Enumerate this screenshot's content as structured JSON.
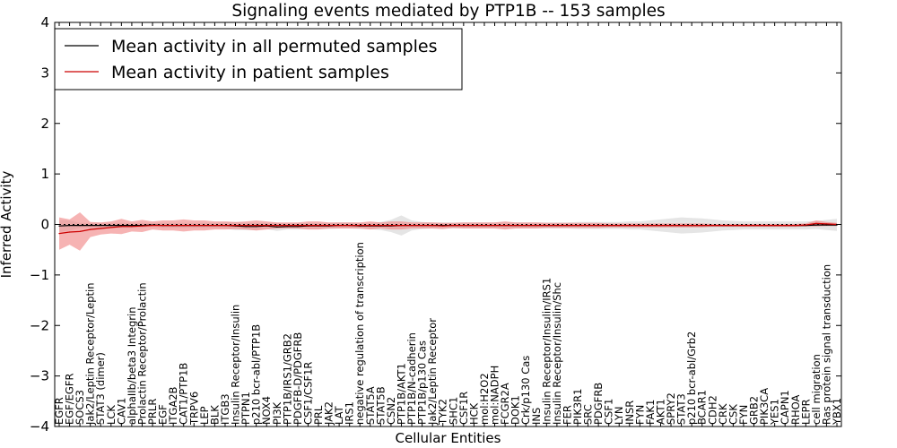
{
  "chart_data": {
    "type": "line",
    "title": "Signaling events mediated by PTP1B -- 153 samples",
    "xlabel": "Cellular Entities",
    "ylabel": "Inferred Activity",
    "ylim": [
      -4,
      4
    ],
    "yticks": [
      -4,
      -3,
      -2,
      -1,
      0,
      1,
      2,
      3,
      4
    ],
    "ytick_labels": [
      "−4",
      "−3",
      "−2",
      "−1",
      "0",
      "1",
      "2",
      "3",
      "4"
    ],
    "legend_position": "top-left",
    "categories": [
      "EGFR",
      "EGF/EGFR",
      "SOCS3",
      "Jak2/Leptin Receptor/Leptin",
      "STAT3 (dimer)",
      "LCK",
      "CAV1",
      "alphaIIb/beta3 Integrin",
      "Prolactin Receptor/Prolactin",
      "PRLR",
      "EGF",
      "ITGA2B",
      "CAT1/PTP1B",
      "TRPV6",
      "LEP",
      "BLK",
      "ITGB3",
      "Insulin Receptor/Insulin",
      "PTPN1",
      "p210 bcr-abl/PTP1B",
      "NOX4",
      "PI3K",
      "PTP1B/IRS1/GRB2",
      "PDGFB-D/PDGFRB",
      "CSF1/CSF1R",
      "PRL",
      "JAK2",
      "LAT",
      "IRS1",
      "negative regulation of transcription",
      "STAT5A",
      "STAT5B",
      "CSN2",
      "PTP1B/AKT1",
      "PTP1B/N-cadherin",
      "PTP1B/p130 Cas",
      "Jak2/Leptin Receptor",
      "TYK2",
      "SHC1",
      "CSF1R",
      "HCK",
      "mol:H2O2",
      "mol:NADPH",
      "FCGR2A",
      "DOK1",
      "Crk/p130 Cas",
      "INS",
      "Insulin Receptor/Insulin/IRS1",
      "Insulin Receptor/Insulin/Shc",
      "FER",
      "PIK3R1",
      "SRC",
      "PDGFRB",
      "CSF1",
      "LYN",
      "INSR",
      "FYN",
      "FAK1",
      "AKT1",
      "SPRY2",
      "STAT3",
      "p210 bcr-abl/Grb2",
      "BCAR1",
      "CDH2",
      "CRK",
      "CSK",
      "FYN",
      "GRB2",
      "PIK3CA",
      "YES1",
      "CAPN1",
      "RHOA",
      "LEPR",
      "cell migration",
      "Ras protein signal transduction",
      "YBX1"
    ],
    "series": [
      {
        "name": "Mean activity in all permuted samples",
        "color": "#000000",
        "values": [
          -0.03,
          -0.02,
          -0.02,
          -0.02,
          -0.02,
          -0.02,
          -0.02,
          -0.02,
          -0.02,
          -0.01,
          -0.02,
          -0.02,
          -0.02,
          -0.02,
          -0.02,
          -0.02,
          -0.02,
          -0.03,
          -0.04,
          -0.04,
          -0.03,
          -0.05,
          -0.04,
          -0.04,
          -0.03,
          -0.03,
          -0.03,
          -0.02,
          -0.02,
          -0.03,
          -0.03,
          -0.03,
          -0.03,
          -0.02,
          -0.02,
          -0.02,
          -0.02,
          -0.02,
          -0.02,
          -0.02,
          -0.02,
          -0.02,
          -0.02,
          -0.02,
          -0.02,
          -0.02,
          -0.02,
          -0.02,
          -0.02,
          -0.02,
          -0.02,
          -0.02,
          -0.02,
          -0.02,
          -0.02,
          -0.02,
          -0.02,
          -0.02,
          -0.02,
          -0.02,
          -0.02,
          -0.02,
          -0.02,
          -0.02,
          -0.02,
          -0.02,
          -0.02,
          -0.02,
          -0.02,
          -0.02,
          -0.02,
          -0.02,
          -0.02,
          -0.01,
          -0.01,
          -0.01
        ],
        "band": [
          0.12,
          0.1,
          0.05,
          0.05,
          0.05,
          0.05,
          0.05,
          0.05,
          0.05,
          0.04,
          0.05,
          0.05,
          0.05,
          0.05,
          0.05,
          0.05,
          0.06,
          0.08,
          0.07,
          0.07,
          0.06,
          0.08,
          0.06,
          0.06,
          0.06,
          0.06,
          0.06,
          0.06,
          0.06,
          0.06,
          0.06,
          0.08,
          0.12,
          0.2,
          0.1,
          0.07,
          0.06,
          0.06,
          0.06,
          0.06,
          0.06,
          0.06,
          0.06,
          0.06,
          0.06,
          0.06,
          0.06,
          0.06,
          0.06,
          0.06,
          0.07,
          0.07,
          0.07,
          0.07,
          0.07,
          0.08,
          0.08,
          0.1,
          0.12,
          0.14,
          0.16,
          0.15,
          0.14,
          0.12,
          0.1,
          0.09,
          0.08,
          0.08,
          0.08,
          0.08,
          0.08,
          0.08,
          0.08,
          0.08,
          0.1,
          0.12
        ]
      },
      {
        "name": "Mean activity in patient samples",
        "color": "#cc0000",
        "values": [
          -0.18,
          -0.15,
          -0.14,
          -0.1,
          -0.08,
          -0.06,
          -0.04,
          -0.04,
          -0.03,
          -0.02,
          -0.02,
          -0.02,
          -0.02,
          -0.02,
          -0.02,
          -0.02,
          -0.02,
          -0.02,
          -0.02,
          -0.02,
          -0.02,
          -0.02,
          -0.02,
          -0.02,
          -0.02,
          -0.02,
          -0.02,
          -0.02,
          -0.02,
          -0.02,
          -0.02,
          -0.02,
          -0.02,
          -0.02,
          -0.02,
          -0.02,
          -0.02,
          -0.03,
          -0.02,
          -0.02,
          -0.02,
          -0.02,
          -0.02,
          -0.02,
          -0.02,
          -0.02,
          -0.02,
          -0.02,
          -0.02,
          -0.02,
          -0.02,
          -0.02,
          -0.02,
          -0.02,
          -0.02,
          -0.02,
          -0.02,
          -0.02,
          -0.02,
          -0.02,
          -0.02,
          -0.02,
          -0.02,
          -0.02,
          -0.02,
          -0.02,
          -0.02,
          -0.02,
          -0.02,
          -0.02,
          -0.02,
          -0.02,
          -0.01,
          0.02,
          0.01,
          0.0
        ],
        "band": [
          0.32,
          0.25,
          0.38,
          0.15,
          0.12,
          0.12,
          0.15,
          0.1,
          0.12,
          0.08,
          0.1,
          0.1,
          0.12,
          0.1,
          0.1,
          0.08,
          0.08,
          0.07,
          0.08,
          0.1,
          0.08,
          0.06,
          0.06,
          0.06,
          0.08,
          0.08,
          0.06,
          0.06,
          0.06,
          0.06,
          0.08,
          0.06,
          0.08,
          0.08,
          0.06,
          0.06,
          0.06,
          0.06,
          0.05,
          0.06,
          0.06,
          0.06,
          0.06,
          0.08,
          0.06,
          0.06,
          0.06,
          0.05,
          0.05,
          0.05,
          0.05,
          0.05,
          0.05,
          0.04,
          0.04,
          0.04,
          0.04,
          0.04,
          0.04,
          0.04,
          0.04,
          0.04,
          0.04,
          0.03,
          0.03,
          0.03,
          0.03,
          0.03,
          0.03,
          0.03,
          0.03,
          0.03,
          0.03,
          0.06,
          0.04,
          0.03
        ]
      }
    ]
  }
}
